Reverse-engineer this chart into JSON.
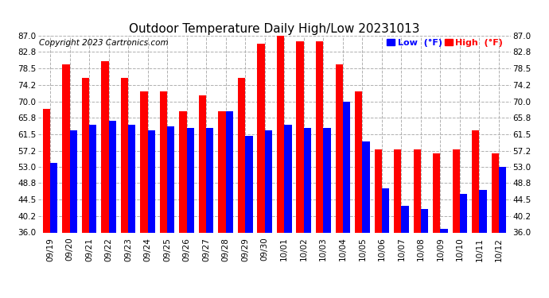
{
  "title": "Outdoor Temperature Daily High/Low 20231013",
  "copyright": "Copyright 2023 Cartronics.com",
  "legend_low": "Low  (°F)",
  "legend_high": "High  (°F)",
  "dates": [
    "09/19",
    "09/20",
    "09/21",
    "09/22",
    "09/23",
    "09/24",
    "09/25",
    "09/26",
    "09/27",
    "09/28",
    "09/29",
    "09/30",
    "10/01",
    "10/02",
    "10/03",
    "10/04",
    "10/05",
    "10/06",
    "10/07",
    "10/08",
    "10/09",
    "10/10",
    "10/11",
    "10/12"
  ],
  "highs": [
    68.0,
    79.5,
    76.0,
    80.5,
    76.0,
    72.5,
    72.5,
    67.5,
    71.5,
    67.5,
    76.0,
    85.0,
    87.0,
    85.5,
    85.5,
    79.5,
    72.5,
    57.5,
    57.5,
    57.5,
    56.5,
    57.5,
    62.5,
    56.5
  ],
  "lows": [
    54.0,
    62.5,
    64.0,
    65.0,
    64.0,
    62.5,
    63.5,
    63.0,
    63.0,
    67.5,
    61.0,
    62.5,
    64.0,
    63.0,
    63.0,
    70.0,
    59.5,
    47.5,
    43.0,
    42.0,
    37.0,
    46.0,
    47.0,
    53.0
  ],
  "ymin": 36.0,
  "ymax": 87.0,
  "yticks": [
    36.0,
    40.2,
    44.5,
    48.8,
    53.0,
    57.2,
    61.5,
    65.8,
    70.0,
    74.2,
    78.5,
    82.8,
    87.0
  ],
  "ytick_labels": [
    "36.0",
    "40.2",
    "44.5",
    "48.8",
    "53.0",
    "57.2",
    "61.5",
    "65.8",
    "70.0",
    "74.2",
    "78.5",
    "82.8",
    "87.0"
  ],
  "bar_color_high": "#ff0000",
  "bar_color_low": "#0000ff",
  "background_color": "#ffffff",
  "grid_color": "#b0b0b0",
  "title_fontsize": 11,
  "tick_fontsize": 7.5,
  "copyright_fontsize": 7.5,
  "legend_fontsize": 8.0,
  "bar_width": 0.38
}
